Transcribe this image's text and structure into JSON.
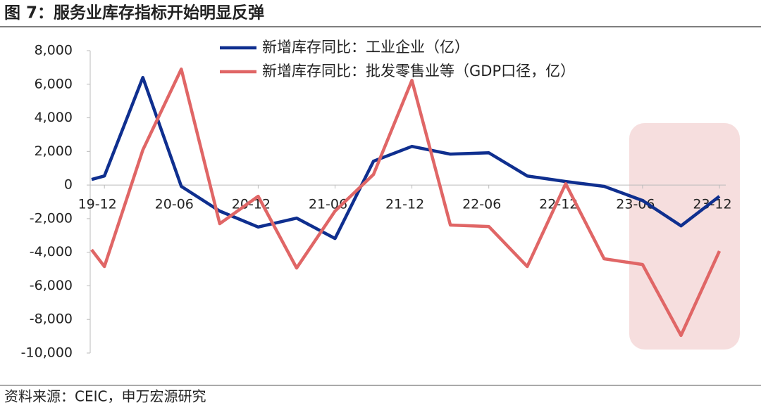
{
  "chart_data": {
    "type": "line",
    "title": "图 7：服务业库存指标开始明显反弹",
    "source": "资料来源：CEIC，申万宏源研究",
    "x": [
      "19-11",
      "19-12",
      "20-03",
      "20-06",
      "20-09",
      "20-12",
      "21-03",
      "21-06",
      "21-09",
      "21-12",
      "22-03",
      "22-06",
      "22-09",
      "22-12",
      "23-03",
      "23-06",
      "23-09",
      "23-12"
    ],
    "xlim": [
      "19-11",
      "23-12"
    ],
    "xticks": [
      "19-12",
      "20-06",
      "20-12",
      "21-06",
      "21-12",
      "22-06",
      "22-12",
      "23-06",
      "23-12"
    ],
    "ylim": [
      -10000,
      8000
    ],
    "yticks": [
      {
        "value": -10000,
        "label": "-10,000"
      },
      {
        "value": -8000,
        "label": "-8,000"
      },
      {
        "value": -6000,
        "label": "-6,000"
      },
      {
        "value": -4000,
        "label": "-4,000"
      },
      {
        "value": -2000,
        "label": "-2,000"
      },
      0,
      {
        "value": 2000,
        "label": "2,000"
      },
      {
        "value": 4000,
        "label": "4,000"
      },
      {
        "value": 6000,
        "label": "6,000"
      },
      {
        "value": 8000,
        "label": "8,000"
      }
    ],
    "series": [
      {
        "name": "新增库存同比：工业企业（亿）",
        "color": "#0f2f8f",
        "values": [
          330,
          540,
          6400,
          -80,
          -1550,
          -2500,
          -1970,
          -3180,
          1420,
          2300,
          1840,
          1920,
          540,
          210,
          -80,
          -920,
          -2430,
          -670
        ]
      },
      {
        "name": "新增库存同比：批发零售业等（GDP口径，亿）",
        "color": "#e06666",
        "values": [
          -3850,
          -4850,
          2090,
          6900,
          -2300,
          -670,
          -4940,
          -1550,
          630,
          6230,
          -2380,
          -2470,
          -4850,
          80,
          -4390,
          -4730,
          -8950,
          -3930
        ]
      }
    ]
  }
}
